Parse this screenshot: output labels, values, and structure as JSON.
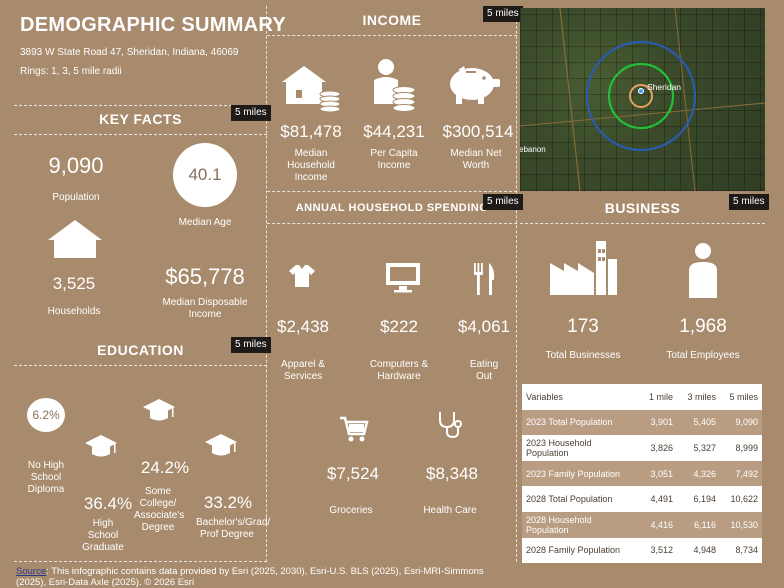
{
  "header": {
    "title": "DEMOGRAPHIC SUMMARY",
    "address": "3893 W State Road 47, Sheridan, Indiana, 46069",
    "rings": "Rings: 1, 3, 5 mile radii"
  },
  "key_facts": {
    "title": "KEY FACTS",
    "badge": "5 miles",
    "population_value": "9,090",
    "population_label": "Population",
    "median_age_value": "40.1",
    "median_age_label": "Median Age",
    "households_value": "3,525",
    "households_label": "Households",
    "disposable_income_value": "$65,778",
    "disposable_income_label": "Median Disposable Income"
  },
  "education": {
    "title": "EDUCATION",
    "badge": "5 miles",
    "no_high_school_value": "6.2%",
    "no_high_school_label": "No High School Diploma",
    "high_school_value": "36.4%",
    "high_school_label": "High School Graduate",
    "some_college_value": "24.2%",
    "some_college_label": "Some College/ Associate's Degree",
    "bachelors_value": "33.2%",
    "bachelors_label": "Bachelor's/Grad/ Prof Degree"
  },
  "income": {
    "title": "INCOME",
    "badge": "5 miles",
    "median_hh_value": "$81,478",
    "median_hh_label": "Median Household Income",
    "per_capita_value": "$44,231",
    "per_capita_label": "Per Capita Income",
    "net_worth_value": "$300,514",
    "net_worth_label": "Median Net Worth"
  },
  "spending": {
    "title": "ANNUAL HOUSEHOLD SPENDING",
    "badge": "5 miles",
    "apparel_value": "$2,438",
    "apparel_label": "Apparel & Services",
    "computers_value": "$222",
    "computers_label": "Computers & Hardware",
    "eating_value": "$4,061",
    "eating_label": "Eating Out",
    "groceries_value": "$7,524",
    "groceries_label": "Groceries",
    "health_value": "$8,348",
    "health_label": "Health Care"
  },
  "map": {
    "label_sheridan": "Sheridan",
    "label_lebanon": "ebanon"
  },
  "business": {
    "title": "BUSINESS",
    "badge": "5 miles",
    "businesses_value": "173",
    "businesses_label": "Total Businesses",
    "employees_value": "1,968",
    "employees_label": "Total Employees"
  },
  "variables_table": {
    "headers": [
      "Variables",
      "1 mile",
      "3 miles",
      "5 miles"
    ],
    "rows": [
      [
        "2023 Total Population",
        "3,901",
        "5,405",
        "9,090"
      ],
      [
        "2023 Household Population",
        "3,826",
        "5,327",
        "8,999"
      ],
      [
        "2023 Family Population",
        "3,051",
        "4,326",
        "7,492"
      ],
      [
        "2028 Total Population",
        "4,491",
        "6,194",
        "10,622"
      ],
      [
        "2028 Household Population",
        "4,416",
        "6,116",
        "10,530"
      ],
      [
        "2028 Family Population",
        "3,512",
        "4,948",
        "8,734"
      ]
    ]
  },
  "footer": {
    "source_link": "Source",
    "source_text": ": This infographic contains data provided by Esri (2025, 2030), Esri-U.S. BLS (2025), Esri-MRI-Simmons (2025), Esri-Data Axle (2025). © 2026 Esri"
  },
  "colors": {
    "background": "#a88a6c",
    "badge": "#1e1a17",
    "ring_inner": "#e8a060",
    "ring_middle": "#22c03a",
    "ring_outer": "#2a5bb0"
  }
}
